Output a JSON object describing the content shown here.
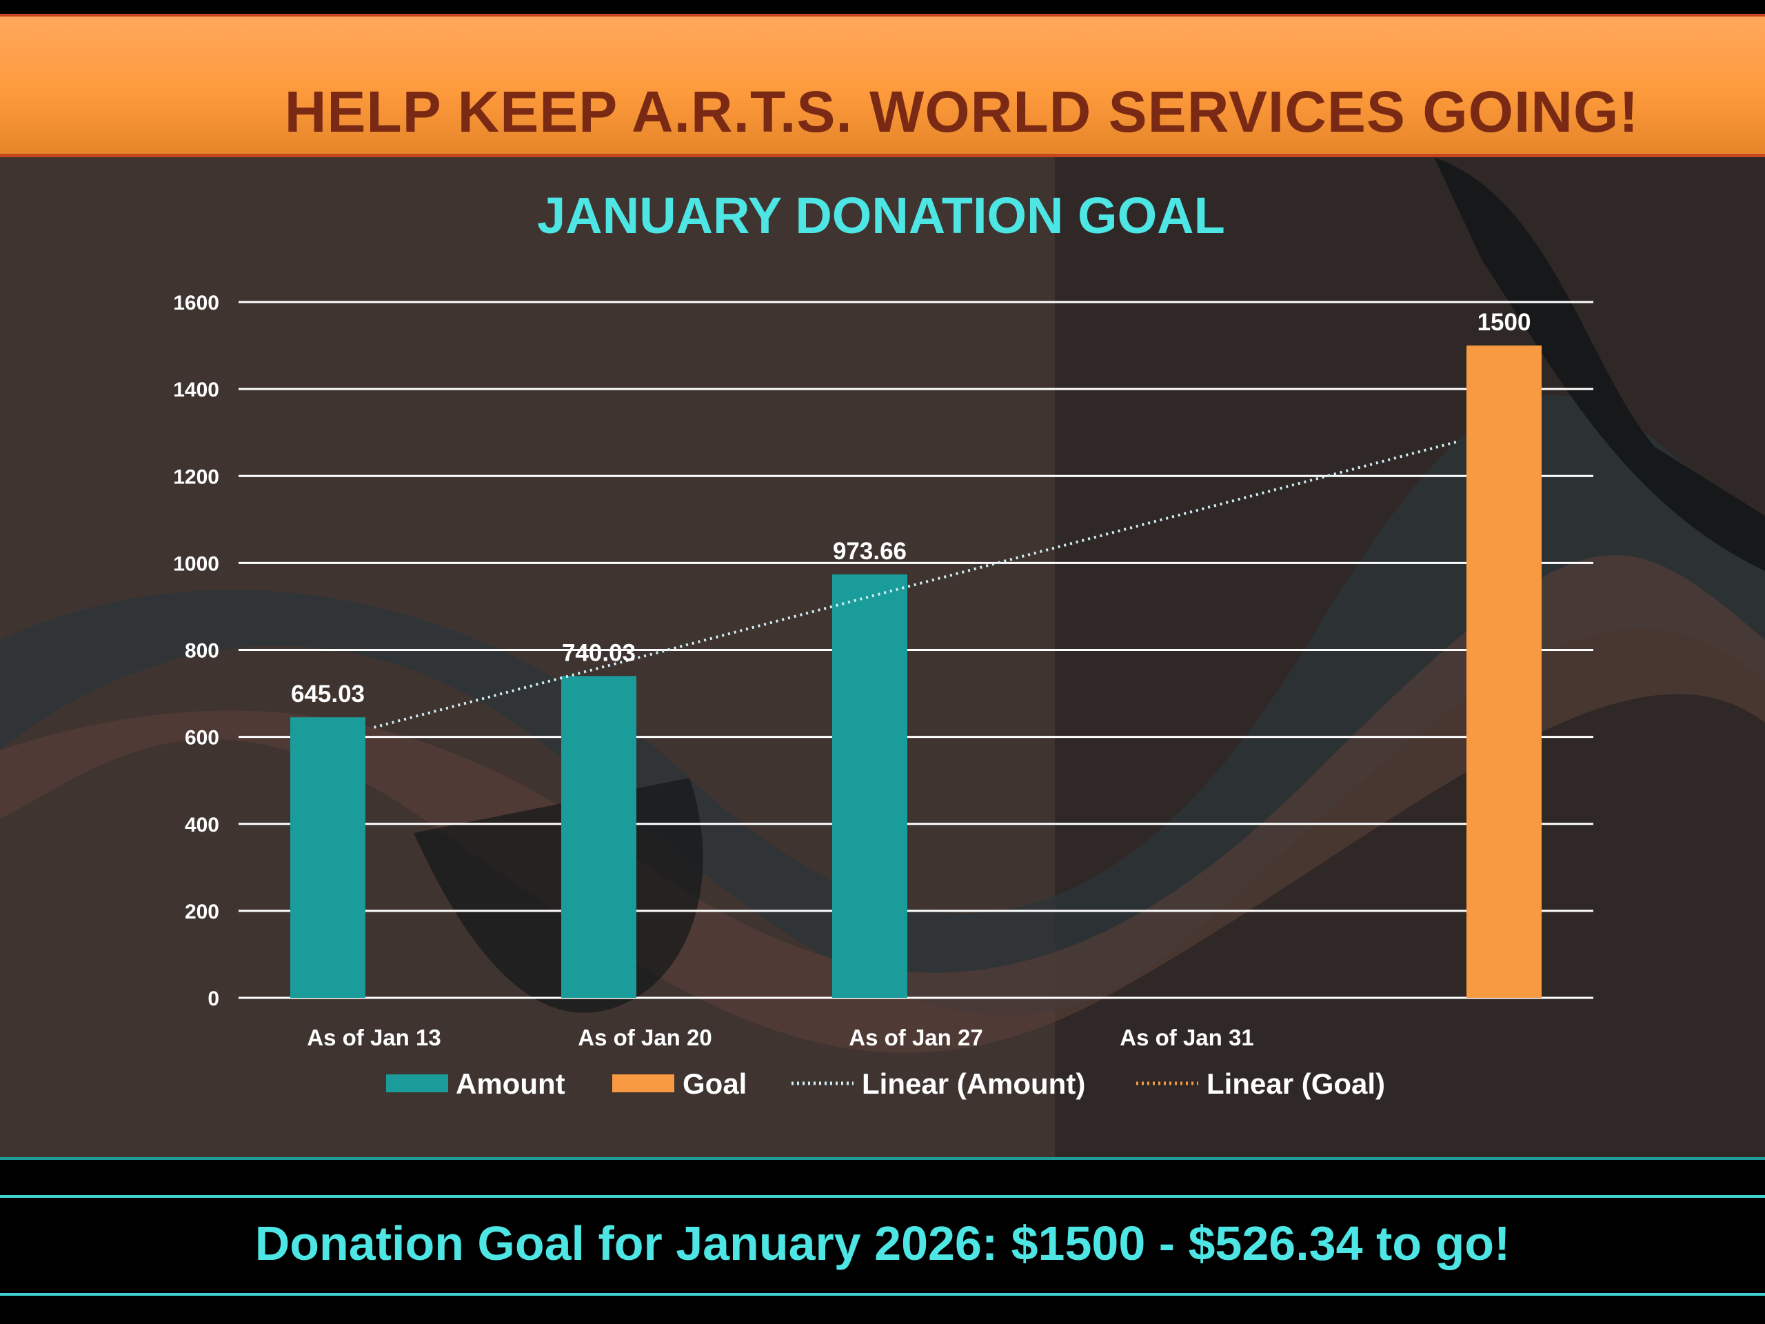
{
  "header": {
    "title": "HELP KEEP A.R.T.S. WORLD SERVICES GOING!"
  },
  "footer": {
    "text": "Donation Goal for January 2026: $1500 - $526.34 to go!"
  },
  "colors": {
    "amount": "#1a9c9a",
    "goal": "#f89a42",
    "title": "#4de6e4",
    "trend_amount": "#cfeff5",
    "trend_goal": "#f89a42"
  },
  "chart_data": {
    "type": "bar",
    "title": "JANUARY DONATION GOAL",
    "categories": [
      "As of Jan 13",
      "As of Jan 20",
      "As of Jan 27",
      "As of Jan 31",
      ""
    ],
    "series": [
      {
        "name": "Amount",
        "values": [
          645.03,
          740.03,
          973.66,
          null,
          null
        ],
        "labels": [
          "645.03",
          "740.03",
          "973.66",
          "",
          ""
        ]
      },
      {
        "name": "Goal",
        "values": [
          null,
          null,
          null,
          null,
          1500
        ],
        "labels": [
          "",
          "",
          "",
          "",
          "1500"
        ]
      }
    ],
    "trendlines": [
      {
        "name": "Linear (Amount)",
        "series": "Amount",
        "type": "linear"
      },
      {
        "name": "Linear (Goal)",
        "series": "Goal",
        "type": "linear"
      }
    ],
    "legend": [
      "Amount",
      "Goal",
      "Linear (Amount)",
      "Linear (Goal)"
    ],
    "legend_position": "bottom",
    "ylim": [
      0,
      1600
    ],
    "yticks": [
      0,
      200,
      400,
      600,
      800,
      1000,
      1200,
      1400,
      1600
    ],
    "grid": true,
    "xlabel": "",
    "ylabel": ""
  }
}
